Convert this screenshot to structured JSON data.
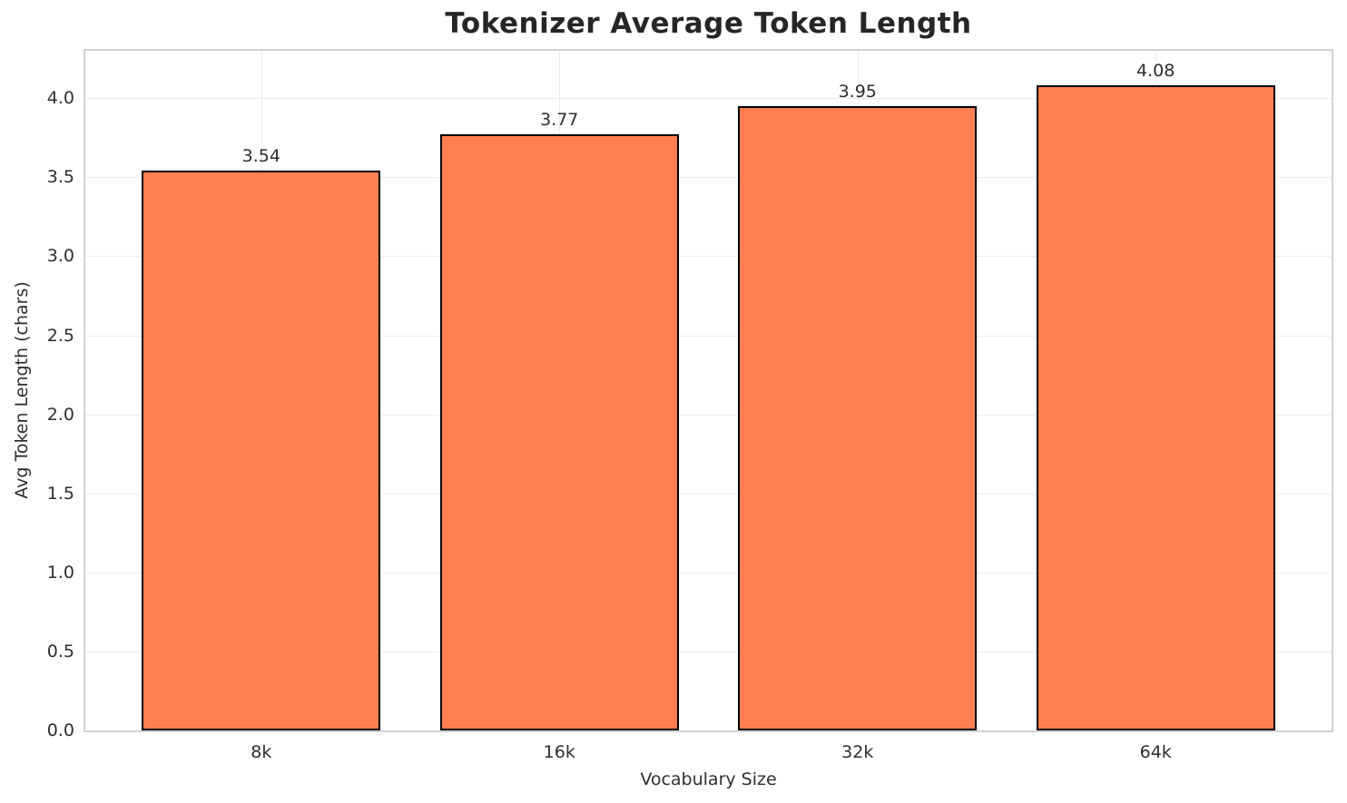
{
  "chart_data": {
    "type": "bar",
    "title": "Tokenizer Average Token Length",
    "xlabel": "Vocabulary Size",
    "ylabel": "Avg Token Length (chars)",
    "categories": [
      "8k",
      "16k",
      "32k",
      "64k"
    ],
    "values": [
      3.54,
      3.77,
      3.95,
      4.08
    ],
    "bar_labels": [
      "3.54",
      "3.77",
      "3.95",
      "4.08"
    ],
    "yticks": [
      0.0,
      0.5,
      1.0,
      1.5,
      2.0,
      2.5,
      3.0,
      3.5,
      4.0
    ],
    "ytick_labels": [
      "0.0",
      "0.5",
      "1.0",
      "1.5",
      "2.0",
      "2.5",
      "3.0",
      "3.5",
      "4.0"
    ],
    "ylim": [
      0,
      4.3
    ],
    "bar_width_fraction": 0.8,
    "grid": true,
    "legend_position": "none",
    "colors": {
      "bar_fill": "#FF7F50",
      "bar_edge": "#000000",
      "grid": "#ececec",
      "spine": "#d2d2d2",
      "text": "#2e2e2e",
      "title": "#262626",
      "background": "#ffffff"
    }
  }
}
